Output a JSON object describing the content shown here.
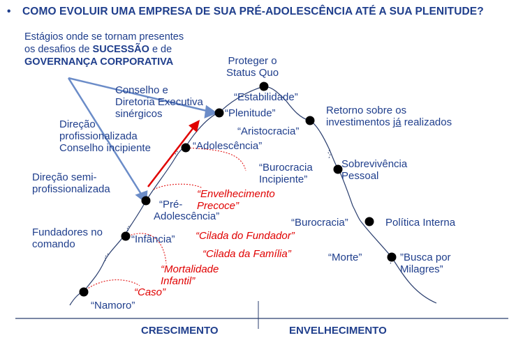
{
  "title": "COMO EVOLUIR UMA EMPRESA DE SUA PRÉ-ADOLESCÊNCIA ATÉ A SUA PLENITUDE?",
  "bullet": "•",
  "note": {
    "line1": "Estágios onde se tornam presentes",
    "line2a": "os desafios de ",
    "line2b": "SUCESSÃO",
    "line2c": " e de",
    "line3": "GOVERNANÇA CORPORATIVA"
  },
  "stages": {
    "namoro": "“Namoro”",
    "infancia": "“Infância”",
    "pre1": "“Pré-",
    "pre2": "Adolescência”",
    "adolescencia": "“Adolescência”",
    "plenitude": "“Plenitude”",
    "estabilidade": "“Estabilidade”",
    "aristocracia": "“Aristocracia”",
    "burocracia_incipiente1": "“Burocracia",
    "burocracia_incipiente2": "Incipiente”",
    "burocracia": "“Burocracia”",
    "morte": "“Morte”"
  },
  "left_labels": {
    "fundadores1": "Fundadores no",
    "fundadores2": "comando",
    "semi1": "Direção semi-",
    "semi2": "profissionalizada",
    "prof1": "Direção",
    "prof2": "profissionalizada",
    "prof3": "Conselho incipiente",
    "conselho1": "Conselho e",
    "conselho2": "Diretoria Executiva",
    "conselho3": "sinérgicos"
  },
  "right_labels": {
    "proteger1": "Proteger o",
    "proteger2": "Status Quo",
    "retorno1": "Retorno sobre os",
    "retorno2a": "investimentos ",
    "retorno2b": "já",
    "retorno2c": " realizados",
    "sobre1": "Sobrevivência",
    "sobre2": "Pessoal",
    "politica": "Política Interna",
    "busca1": "”Busca por",
    "busca2": "Milagres”"
  },
  "traps": {
    "caso": "“Caso”",
    "mortalidade1": "“Mortalidade",
    "mortalidade2": "Infantil”",
    "fundador": "“Cilada do Fundador”",
    "familia": "“Cilada da Família”",
    "envelhecimento1": "“Envelhecimento",
    "envelhecimento2": "Precoce”"
  },
  "sections": {
    "crescimento": "CRESCIMENTO",
    "envelhecimento": "ENVELHECIMENTO"
  },
  "colors": {
    "text": "#1F3E8C",
    "trap": "#E00000",
    "arrow": "#6B8CC8",
    "curve": "#2A3E6E"
  }
}
